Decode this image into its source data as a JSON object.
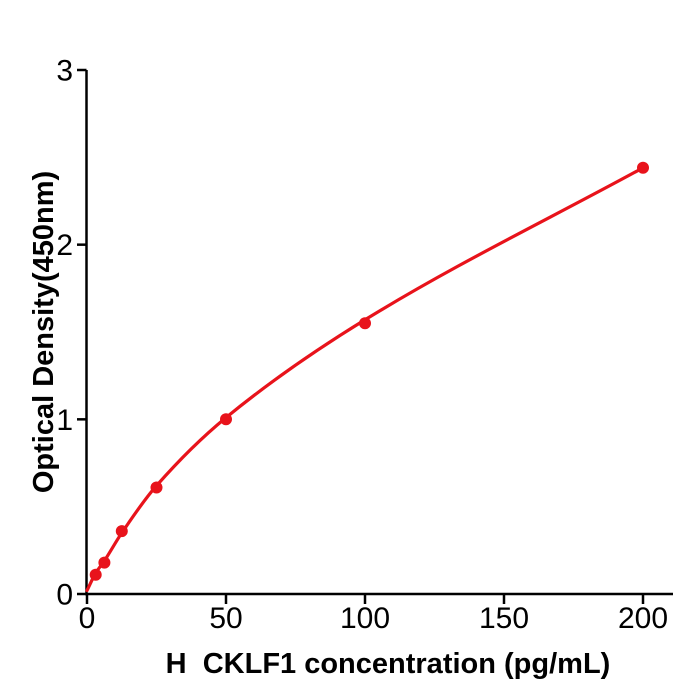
{
  "chart_data": {
    "type": "scatter",
    "subtype": "elisa-standard-curve-with-fit-line",
    "title": "",
    "xlabel": "H  CKLF1 concentration (pg/mL)",
    "ylabel": "Optical Density(450nm)",
    "points": [
      {
        "x": 3.125,
        "y": 0.11
      },
      {
        "x": 6.25,
        "y": 0.18
      },
      {
        "x": 12.5,
        "y": 0.36
      },
      {
        "x": 25,
        "y": 0.61
      },
      {
        "x": 50,
        "y": 1.0
      },
      {
        "x": 100,
        "y": 1.55
      },
      {
        "x": 200,
        "y": 2.44
      }
    ],
    "fit_curve_points": [
      {
        "x": 0,
        "y": 0.02
      },
      {
        "x": 3.125,
        "y": 0.12
      },
      {
        "x": 6.25,
        "y": 0.19
      },
      {
        "x": 12.5,
        "y": 0.35
      },
      {
        "x": 25,
        "y": 0.62
      },
      {
        "x": 50,
        "y": 1.01
      },
      {
        "x": 100,
        "y": 1.57
      },
      {
        "x": 200,
        "y": 2.44
      }
    ],
    "xticks": [
      "0",
      "50",
      "100",
      "150",
      "200"
    ],
    "xtick_values": [
      0,
      50,
      100,
      150,
      200
    ],
    "yticks": [
      "0",
      "1",
      "2",
      "3"
    ],
    "ytick_values": [
      0,
      1,
      2,
      3
    ],
    "xlim": [
      0,
      211
    ],
    "ylim": [
      0,
      3
    ],
    "grid": false,
    "legend": false,
    "colors": {
      "curve": "#e8131b",
      "marker": "#e8131b",
      "axis": "#000000",
      "background": "#ffffff"
    }
  }
}
